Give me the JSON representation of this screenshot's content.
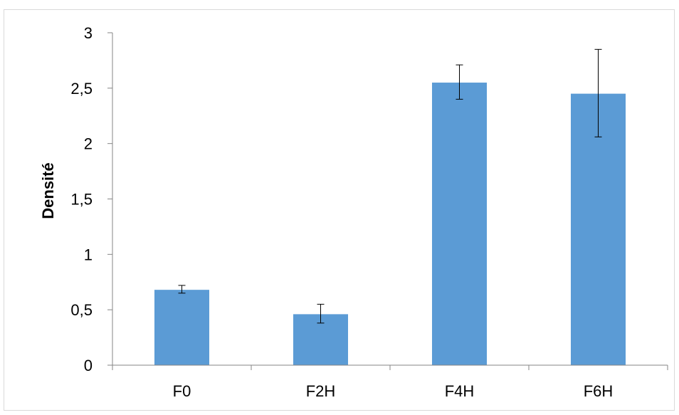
{
  "chart_data": {
    "type": "bar",
    "title": "",
    "xlabel": "",
    "ylabel": "Densité",
    "categories": [
      "F0",
      "F2H",
      "F4H",
      "F6H"
    ],
    "values": [
      0.68,
      0.46,
      2.55,
      2.45
    ],
    "error_low": [
      0.65,
      0.38,
      2.4,
      2.06
    ],
    "error_high": [
      0.72,
      0.55,
      2.71,
      2.85
    ],
    "ylim": [
      0,
      3
    ],
    "ytick_labels": [
      "0",
      "0,5",
      "1",
      "1,5",
      "2",
      "2,5",
      "3"
    ],
    "grid": false,
    "legend": "none",
    "bar_color": "#5B9BD5"
  }
}
